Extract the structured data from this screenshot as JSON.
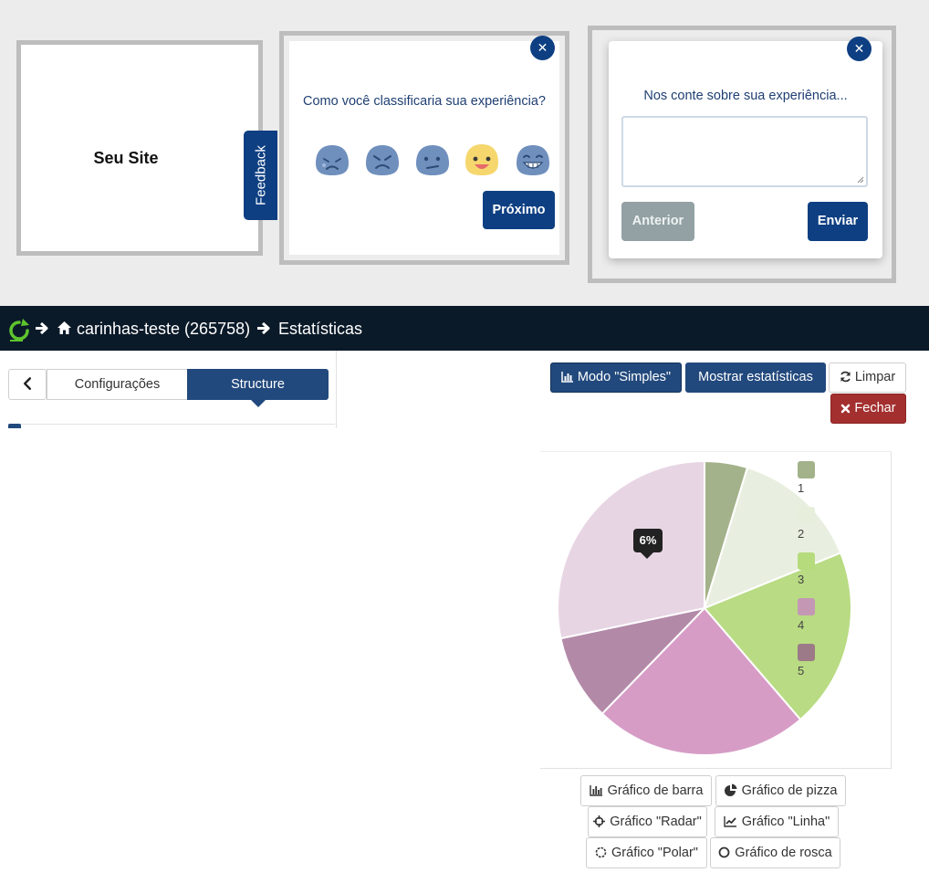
{
  "banner": {
    "site_preview": {
      "title": "Seu Site",
      "feedback_tab": "Feedback"
    },
    "rating_step": {
      "question": "Como você classificaria sua experiência?",
      "faces": [
        "very-sad-face-icon",
        "angry-face-icon",
        "neutral-face-icon",
        "smiling-face-icon",
        "grinning-face-icon"
      ],
      "selected_face": 3,
      "next_button": "Próximo"
    },
    "message_step": {
      "question": "Nos conte sobre sua experiência...",
      "textarea_value": "",
      "back_button": "Anterior",
      "send_button": "Enviar"
    },
    "accent_color": "#0e3f82"
  },
  "nav": {
    "breadcrumb": [
      {
        "label": "carinhas-teste (265758)",
        "icon": "home-icon"
      },
      {
        "label": "Estatísticas"
      }
    ]
  },
  "left_panel": {
    "tabs": [
      {
        "label": "Configurações",
        "active": false
      },
      {
        "label": "Structure",
        "active": true
      }
    ]
  },
  "toolbar": {
    "simple_mode": "Modo \"Simples\"",
    "show_stats": "Mostrar estatísticas",
    "clear": "Limpar",
    "close": "Fechar"
  },
  "chart_data": {
    "type": "pie",
    "categories": [
      "1",
      "2",
      "3",
      "4",
      "5"
    ],
    "values": [
      5,
      15,
      21,
      25,
      10
    ],
    "remainder_slice": 30,
    "colors": [
      "#a3b28a",
      "#e9efe0",
      "#b9db83",
      "#d69cc6",
      "#b389a8"
    ],
    "remainder_color": "#e8d5e4",
    "legend_swatch_colors": [
      "#a3b28a",
      "#e7efdc",
      "#b5db7c",
      "#c498b4",
      "#9c7a88"
    ],
    "legend_position": "right",
    "tooltip": "6%"
  },
  "chart_types": [
    {
      "label": "Gráfico de barra",
      "icon": "bar-chart-icon"
    },
    {
      "label": "Gráfico de pizza",
      "icon": "pie-chart-icon"
    },
    {
      "label": "Gráfico \"Radar\"",
      "icon": "crosshairs-icon"
    },
    {
      "label": "Gráfico \"Linha\"",
      "icon": "line-chart-icon"
    },
    {
      "label": "Gráfico \"Polar\"",
      "icon": "circle-notch-icon"
    },
    {
      "label": "Gráfico de rosca",
      "icon": "circle-outline-icon"
    }
  ]
}
